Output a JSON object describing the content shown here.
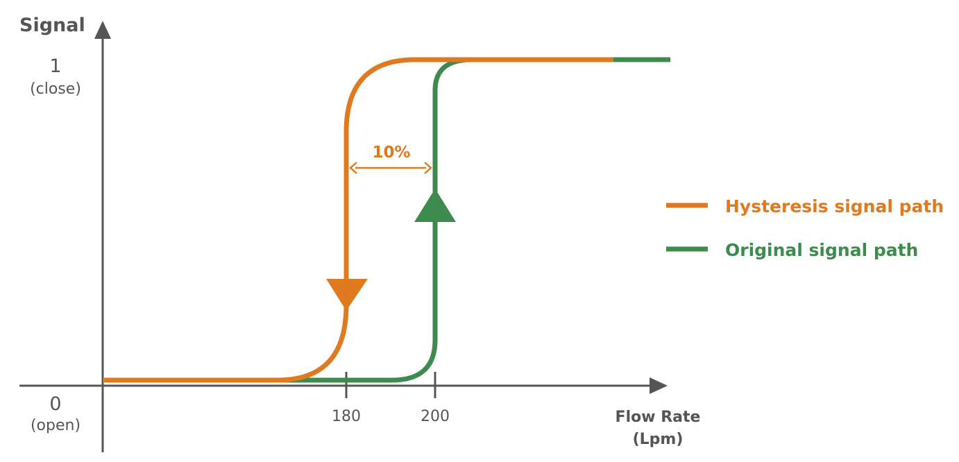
{
  "chart_data": {
    "type": "line",
    "ylabel": "Signal",
    "xlabel_line1": "Flow Rate",
    "xlabel_line2": "(Lpm)",
    "y_ticks": [
      {
        "value": 1,
        "label": "1",
        "sublabel": "(close)"
      },
      {
        "value": 0,
        "label": "0",
        "sublabel": "(open)"
      }
    ],
    "x_ticks": [
      {
        "value": 180,
        "label": "180"
      },
      {
        "value": 200,
        "label": "200"
      }
    ],
    "annotation": {
      "label": "10%",
      "from_x": 180,
      "to_x": 200,
      "color": "#e07a1f"
    },
    "series": [
      {
        "name": "Hysteresis signal path",
        "color": "#e07a1f",
        "direction": "down",
        "transition_x": 180
      },
      {
        "name": "Original signal path",
        "color": "#3f8a4e",
        "direction": "up",
        "transition_x": 200
      }
    ]
  },
  "colors": {
    "axis": "#555555",
    "hysteresis": "#e07a1f",
    "original": "#3f8a4e"
  }
}
